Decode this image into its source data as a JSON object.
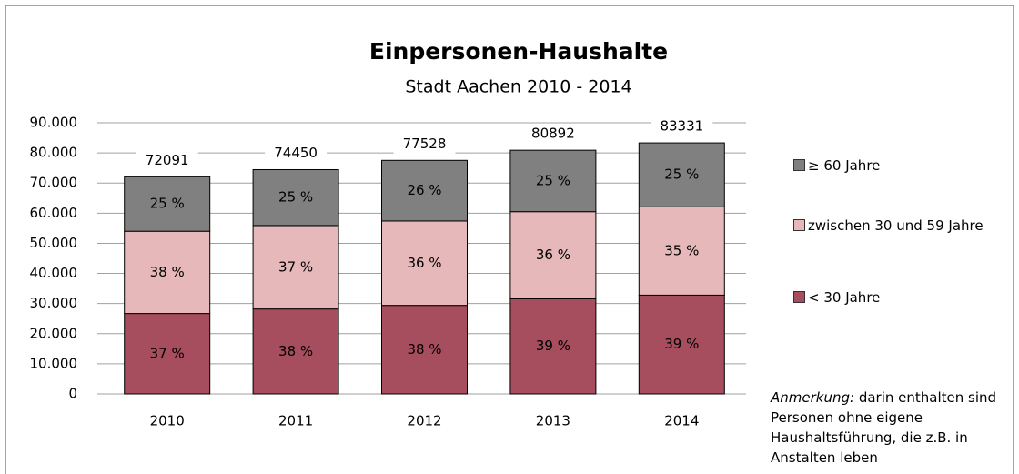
{
  "chart_data": {
    "type": "stacked_bar",
    "title": "Einpersonen-Haushalte",
    "subtitle": "Stadt Aachen 2010 - 2014",
    "categories": [
      "2010",
      "2011",
      "2012",
      "2013",
      "2014"
    ],
    "series": [
      {
        "name": "< 30 Jahre",
        "color": "#a64d5e",
        "values": [
          26700,
          28200,
          29400,
          31600,
          32800
        ],
        "value_labels": [
          "37 %",
          "38 %",
          "38 %",
          "39 %",
          "39 %"
        ]
      },
      {
        "name": "zwischen 30 und 59 Jahre",
        "color": "#e6b8b9",
        "values": [
          27300,
          27700,
          28000,
          28900,
          29300
        ],
        "value_labels": [
          "38 %",
          "37 %",
          "36 %",
          "36 %",
          "35 %"
        ]
      },
      {
        "name": "≥ 60 Jahre",
        "color": "#808080",
        "values": [
          18091,
          18550,
          20128,
          20392,
          21231
        ],
        "value_labels": [
          "25 %",
          "25 %",
          "26 %",
          "25 %",
          "25 %"
        ]
      }
    ],
    "totals": [
      72091,
      74450,
      77528,
      80892,
      83331
    ],
    "ylim": [
      0,
      90000
    ],
    "yticks": [
      0,
      {
        "value": 10000,
        "label": "10.000"
      },
      {
        "value": 20000,
        "label": "20.000"
      },
      {
        "value": 30000,
        "label": "30.000"
      },
      {
        "value": 40000,
        "label": "40.000"
      },
      {
        "value": 50000,
        "label": "50.000"
      },
      {
        "value": 60000,
        "label": "60.000"
      },
      {
        "value": 70000,
        "label": "70.000"
      },
      {
        "value": 80000,
        "label": "80.000"
      },
      {
        "value": 90000,
        "label": "90.000"
      }
    ],
    "grid": true,
    "legend": "right",
    "annotation": {
      "label": "Anmerkung:",
      "text": "darin enthalten sind Personen ohne eigene Haushaltsführung, die z.B. in Anstalten leben"
    }
  }
}
